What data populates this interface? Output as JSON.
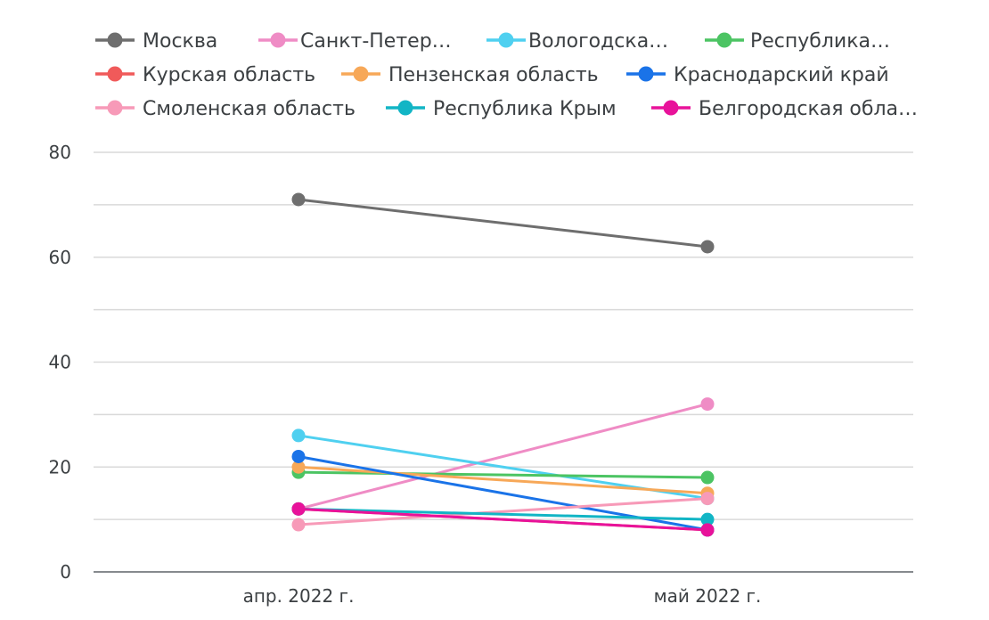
{
  "chart_data": {
    "type": "line",
    "x": [
      "апр. 2022 г.",
      "май 2022 г."
    ],
    "ylim": [
      0,
      80
    ],
    "yticks": [
      0,
      20,
      40,
      60,
      80
    ],
    "grid": true,
    "legend_position": "top",
    "series": [
      {
        "name": "Москва",
        "legend_label": "Москва",
        "color": "#6e6e6e",
        "values": [
          71,
          62
        ]
      },
      {
        "name": "Санкт-Петер…",
        "legend_label": "Санкт-Петер…",
        "color": "#ef8cc5",
        "values": [
          12,
          32
        ]
      },
      {
        "name": "Вологодска…",
        "legend_label": "Вологодска…",
        "color": "#4fd0f0",
        "values": [
          26,
          14
        ]
      },
      {
        "name": "Республика…",
        "legend_label": "Республика…",
        "color": "#4cc463",
        "values": [
          19,
          18
        ]
      },
      {
        "name": "Курская область",
        "legend_label": "Курская область",
        "color": "#f05a5a",
        "values": [
          12,
          8
        ]
      },
      {
        "name": "Пензенская область",
        "legend_label": "Пензенская область",
        "color": "#f7a858",
        "values": [
          20,
          15
        ]
      },
      {
        "name": "Краснодарский край",
        "legend_label": "Краснодарский край",
        "color": "#1a73e8",
        "values": [
          22,
          8
        ]
      },
      {
        "name": "Смоленская область",
        "legend_label": "Смоленская область",
        "color": "#f79ab8",
        "values": [
          9,
          14
        ]
      },
      {
        "name": "Республика Крым",
        "legend_label": "Республика Крым",
        "color": "#12b5c5",
        "values": [
          12,
          10
        ]
      },
      {
        "name": "Белгородская обла…",
        "legend_label": "Белгородская обла…",
        "color": "#e8129a",
        "values": [
          12,
          8
        ]
      }
    ]
  }
}
